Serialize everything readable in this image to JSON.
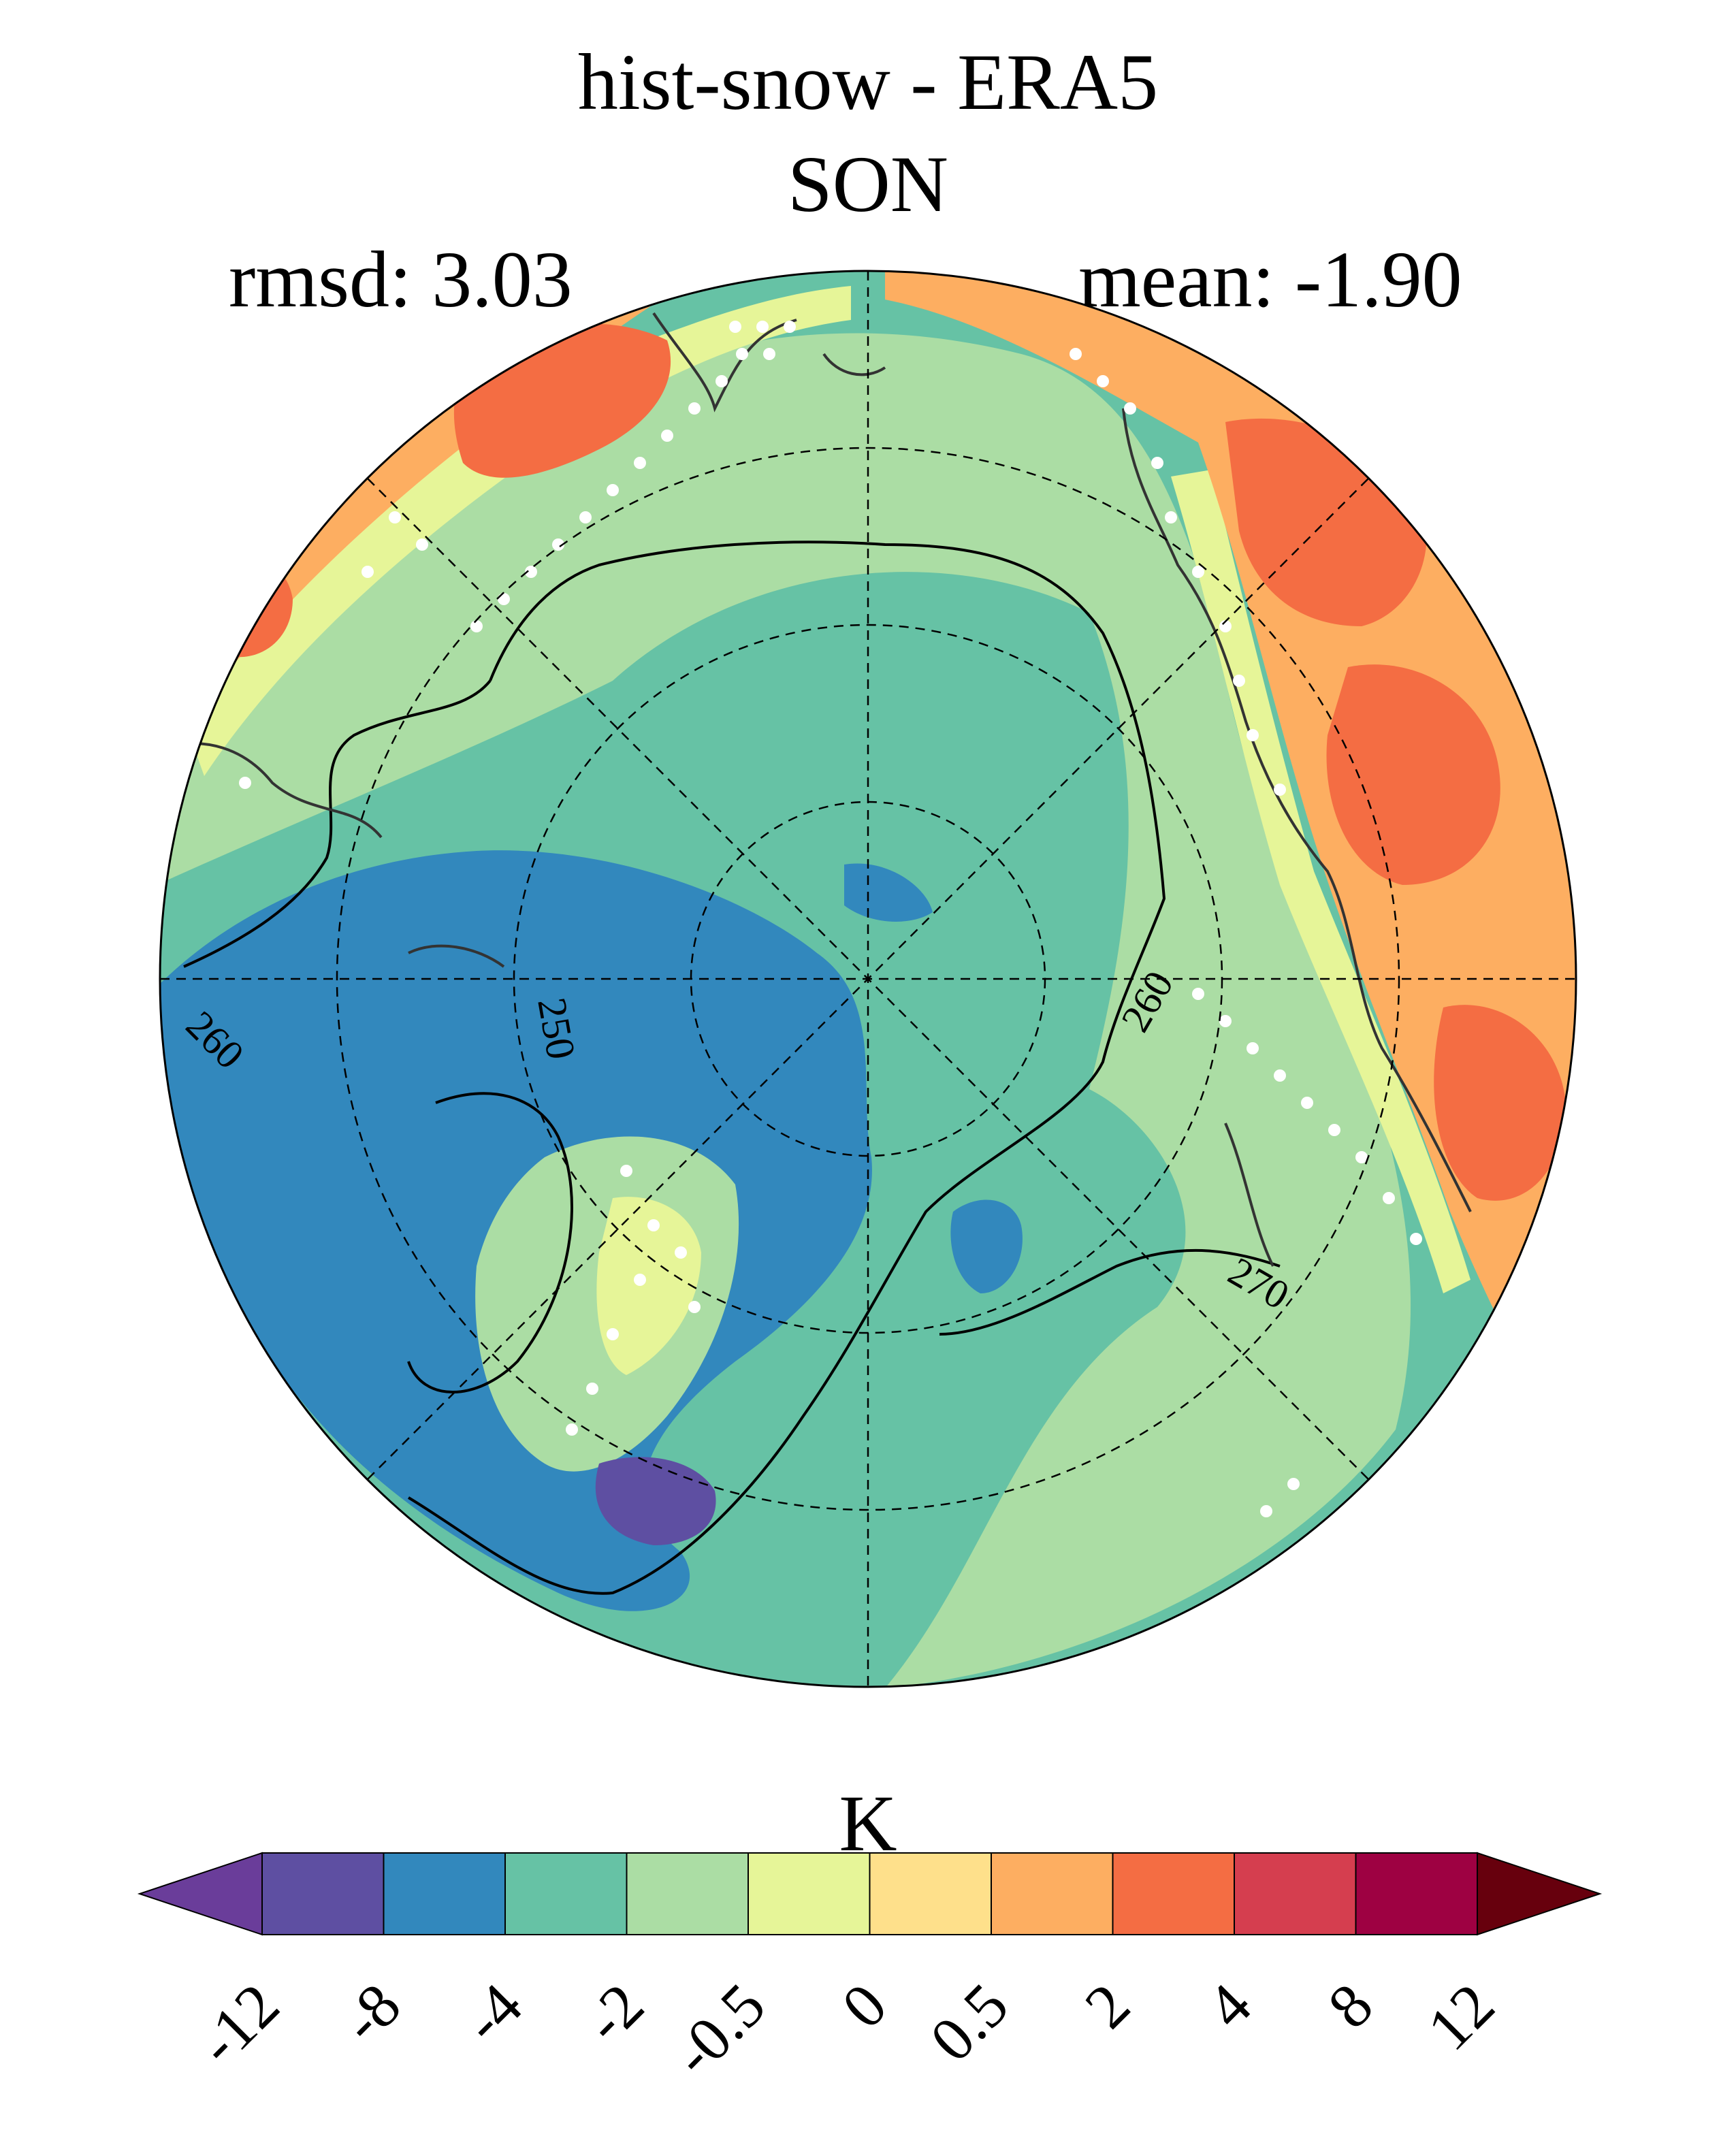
{
  "title": "hist-snow - ERA5",
  "season": "SON",
  "stats": {
    "rmsd_label": "rmsd: 3.03",
    "mean_label": "mean: -1.90"
  },
  "map": {
    "projection": "north-polar-stereographic",
    "graticule": "dashed",
    "stippling": "white-dots",
    "contour_labels": [
      "250",
      "260",
      "260",
      "270"
    ]
  },
  "colorbar": {
    "units": "K",
    "orientation": "horizontal",
    "extend": "both",
    "ticks": [
      "-12",
      "-8",
      "-4",
      "-2",
      "-0.5",
      "0",
      "0.5",
      "2",
      "4",
      "8",
      "12"
    ],
    "colors": [
      "#5e4fa2",
      "#3288bd",
      "#66c2a5",
      "#abdda4",
      "#e6f598",
      "#fee08b",
      "#fdae61",
      "#f46d43",
      "#d53e4f",
      "#9e0142"
    ],
    "under_color": "#6a3d9a",
    "over_color": "#67000d"
  }
}
